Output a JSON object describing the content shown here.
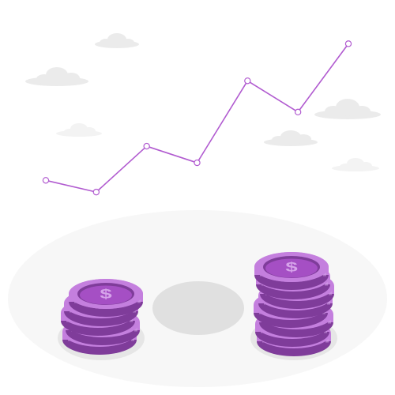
{
  "colors": {
    "line": "#b15bd0",
    "point_fill": "#ffffff",
    "cloud": "#ebebeb",
    "cloud_light": "#f3f3f3",
    "ground": "#f7f7f7",
    "shadow": "#e0e0e0",
    "coin_face": "#a54fc4",
    "coin_rim": "#c47fde",
    "coin_dark": "#7f3c9a",
    "coin_light": "#d6a3ea"
  },
  "icons": {
    "currency": "dollar-sign-icon",
    "weather": "cloud-icon"
  },
  "chart_data": {
    "type": "line",
    "x": [
      1,
      2,
      3,
      4,
      5,
      6,
      7
    ],
    "series": [
      {
        "values": [
          2.0,
          0.8,
          5.5,
          3.8,
          12.2,
          9.0,
          16.0
        ]
      }
    ],
    "ylim": [
      0,
      17
    ],
    "grid": false,
    "legend": "none"
  },
  "coin_stacks": {
    "left": {
      "coins": 5,
      "symbol": "$"
    },
    "right": {
      "coins": 8,
      "symbol": "$"
    }
  }
}
